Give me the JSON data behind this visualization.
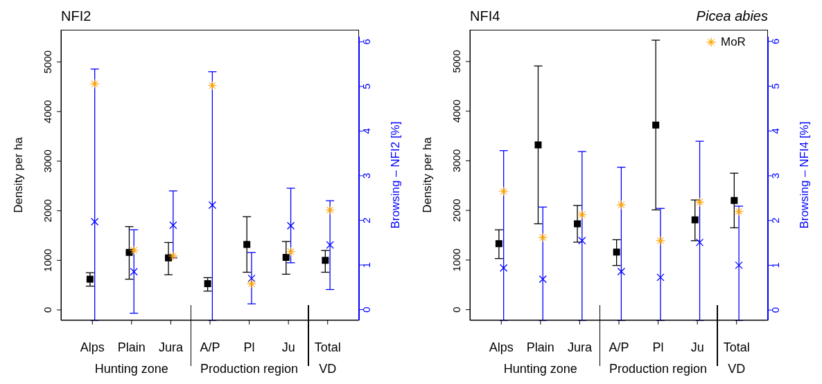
{
  "chart_data": [
    {
      "type": "scatter",
      "title": "NFI2",
      "ylabel": "Density per ha",
      "y2label": "Browsing – NFI2 [%]",
      "legend": false,
      "categories": [
        "Alps",
        "Plain",
        "Jura",
        "A/P",
        "Pl",
        "Ju",
        "Total"
      ],
      "ylim": [
        -210,
        5650
      ],
      "yticks": [
        0,
        1000,
        2000,
        3000,
        4000,
        5000
      ],
      "y2lim": [
        -0.24,
        6.27
      ],
      "y2ticks": [
        0,
        1,
        2,
        3,
        4,
        5,
        6
      ],
      "series": [
        {
          "color": "#000000",
          "marker": "square",
          "values": [
            620,
            1160,
            1050,
            530,
            1320,
            1060,
            1000
          ],
          "errors": [
            [
              480,
              750
            ],
            [
              620,
              1680
            ],
            [
              710,
              1360
            ],
            [
              380,
              650
            ],
            [
              760,
              1880
            ],
            [
              720,
              1380
            ],
            [
              760,
              1200
            ]
          ]
        },
        {
          "color": "#0000ff",
          "marker": "cross",
          "axis": "y2",
          "values": [
            1.97,
            0.85,
            1.89,
            2.34,
            0.7,
            1.88,
            1.45
          ],
          "errors": [
            [
              -0.24,
              5.39
            ],
            [
              -0.08,
              1.79
            ],
            [
              1.16,
              2.66
            ],
            [
              -0.24,
              5.33
            ],
            [
              0.13,
              1.28
            ],
            [
              1.05,
              2.72
            ],
            [
              0.45,
              2.44
            ]
          ]
        },
        {
          "color": "#ffa500",
          "marker": "star",
          "axis": "y2",
          "values": [
            5.06,
            1.33,
            1.2,
            5.02,
            0.58,
            1.3,
            2.23
          ]
        }
      ],
      "annotations": [
        "Hunting zone",
        "Production region",
        "VD"
      ]
    },
    {
      "type": "scatter",
      "title": "NFI4",
      "subtitle": "Picea abies",
      "ylabel": "Density per ha",
      "y2label": "Browsing – NFI4 [%]",
      "legend": "top right",
      "categories": [
        "Alps",
        "Plain",
        "Jura",
        "A/P",
        "Pl",
        "Ju",
        "Total"
      ],
      "ylim": [
        -215,
        5640
      ],
      "yticks": [
        0,
        1000,
        2000,
        3000,
        4000,
        5000
      ],
      "y2lim": [
        -0.23,
        6.26
      ],
      "y2ticks": [
        0,
        1,
        2,
        3,
        4,
        5,
        6
      ],
      "series": [
        {
          "color": "#000000",
          "marker": "square",
          "values": [
            1330,
            3320,
            1730,
            1160,
            3720,
            1810,
            2200
          ],
          "errors": [
            [
              1030,
              1610
            ],
            [
              1730,
              4910
            ],
            [
              1360,
              2100
            ],
            [
              890,
              1410
            ],
            [
              2010,
              5430
            ],
            [
              1390,
              2210
            ],
            [
              1650,
              2750
            ]
          ]
        },
        {
          "color": "#0000ff",
          "marker": "cross",
          "axis": "y2",
          "values": [
            0.94,
            0.69,
            1.55,
            0.86,
            0.73,
            1.51,
            1.0
          ],
          "errors": [
            [
              -0.23,
              3.56
            ],
            [
              -0.23,
              2.3
            ],
            [
              -0.23,
              3.54
            ],
            [
              -0.23,
              3.19
            ],
            [
              -0.23,
              2.27
            ],
            [
              -0.23,
              3.77
            ],
            [
              -0.23,
              2.32
            ]
          ]
        },
        {
          "name": "MoR",
          "color": "#ffa500",
          "marker": "star",
          "axis": "y2",
          "values": [
            2.65,
            1.62,
            2.13,
            2.35,
            1.55,
            2.41,
            2.2
          ]
        }
      ],
      "annotations": [
        "Hunting zone",
        "Production region",
        "VD"
      ]
    }
  ]
}
